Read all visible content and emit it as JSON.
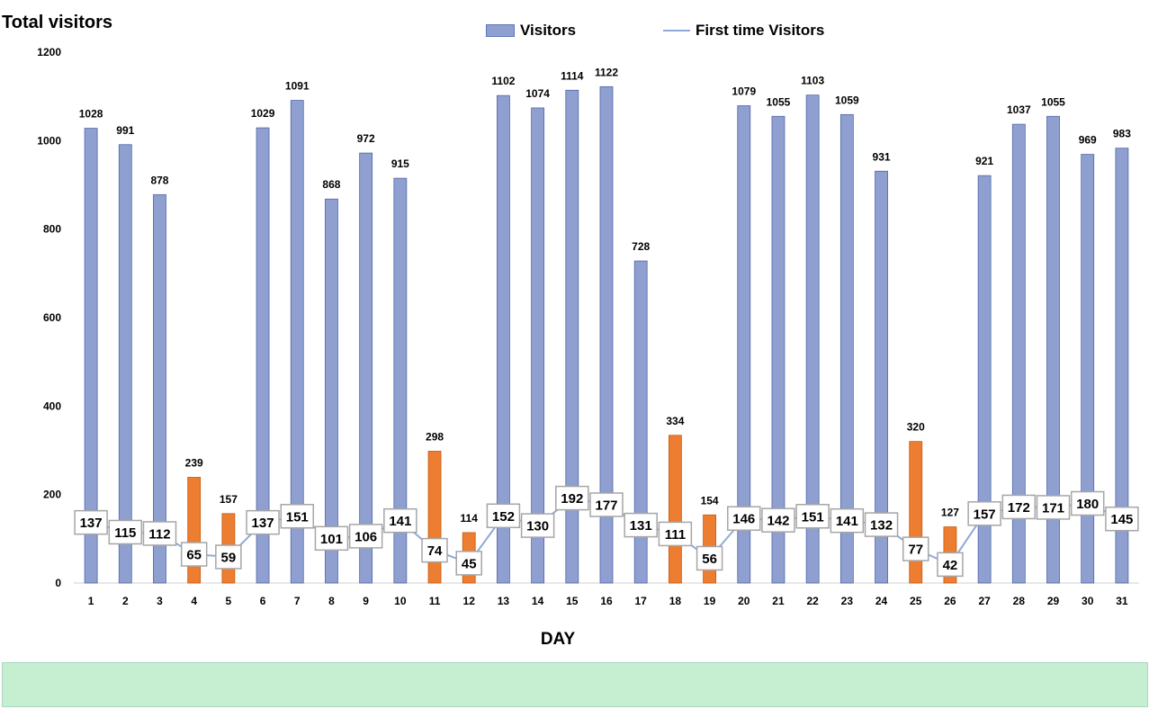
{
  "chart_data": {
    "type": "bar",
    "title": "Total visitors",
    "xlabel": "DAY",
    "ylabel": "",
    "ylim": [
      0,
      1200
    ],
    "yticks": [
      0,
      200,
      400,
      600,
      800,
      1000,
      1200
    ],
    "grid": false,
    "legend_position": "top",
    "categories": [
      "1",
      "2",
      "3",
      "4",
      "5",
      "6",
      "7",
      "8",
      "9",
      "10",
      "11",
      "12",
      "13",
      "14",
      "15",
      "16",
      "17",
      "18",
      "19",
      "20",
      "21",
      "22",
      "23",
      "24",
      "25",
      "26",
      "27",
      "28",
      "29",
      "30",
      "31"
    ],
    "series": [
      {
        "name": "Visitors",
        "type": "bar",
        "color": "#8fa0d0",
        "highlight_color": "#ed7d31",
        "highlight_categories": [
          "4",
          "5",
          "11",
          "12",
          "18",
          "19",
          "25",
          "26"
        ],
        "values": [
          1028,
          991,
          878,
          239,
          157,
          1029,
          1091,
          868,
          972,
          915,
          298,
          114,
          1102,
          1074,
          1114,
          1122,
          728,
          334,
          154,
          1079,
          1055,
          1103,
          1059,
          931,
          320,
          127,
          921,
          1037,
          1055,
          969,
          983
        ]
      },
      {
        "name": "First time Visitors",
        "type": "line",
        "color": "#8ea9d8",
        "values": [
          137,
          115,
          112,
          65,
          59,
          137,
          151,
          101,
          106,
          141,
          74,
          45,
          152,
          130,
          192,
          177,
          131,
          111,
          56,
          146,
          142,
          151,
          141,
          132,
          77,
          42,
          157,
          172,
          171,
          180,
          145
        ]
      }
    ]
  }
}
